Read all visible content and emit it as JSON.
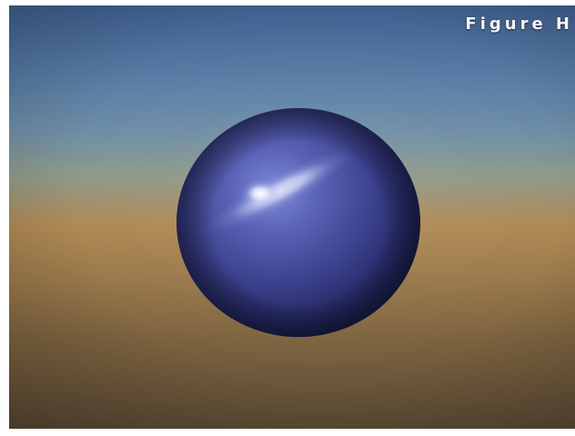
{
  "caption": "Figure H",
  "scene": {
    "object_icon": "sphere-icon",
    "colors": {
      "sky_top": "#3f5f8f",
      "sky_mid": "#6f8fa6",
      "horizon": "#b08a55",
      "ground": "#5b4a34",
      "sphere_base": "#40459a",
      "sphere_light": "#6d78c4",
      "sphere_shadow": "#1a1d4a",
      "highlight": "#ffffff"
    }
  }
}
